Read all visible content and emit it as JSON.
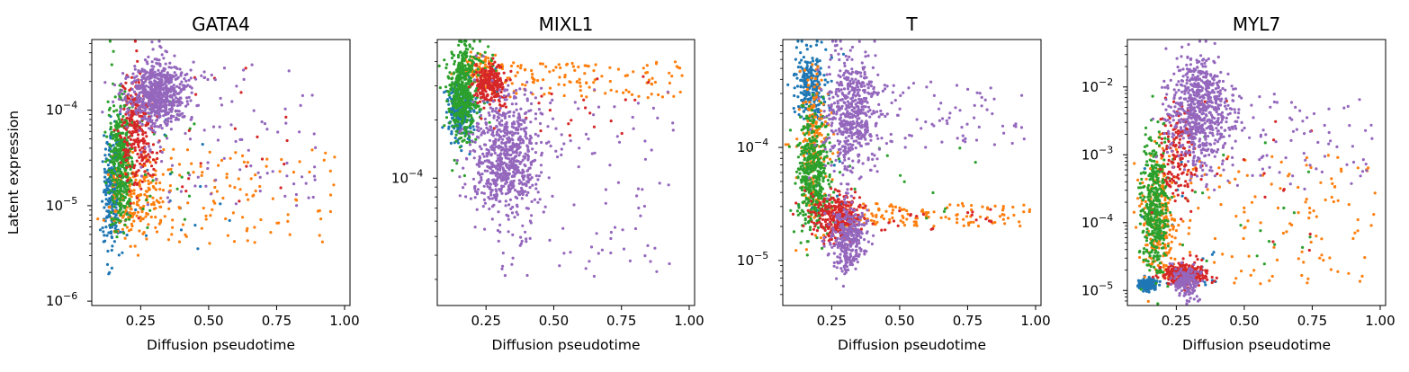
{
  "figure": {
    "ylabel": "Latent expression"
  },
  "colors": {
    "blue": "#1f77b4",
    "orange": "#ff7f0e",
    "green": "#2ca02c",
    "red": "#d62728",
    "purple": "#9467bd"
  },
  "chart_data": [
    {
      "type": "scatter",
      "title": "GATA4",
      "xlabel": "Diffusion pseudotime",
      "ylabel": "Latent expression",
      "xlim": [
        0.07,
        1.02
      ],
      "ylim": [
        9e-07,
        0.00055
      ],
      "yscale": "log",
      "xticks": [
        "0.25",
        "0.50",
        "0.75",
        "1.00"
      ],
      "yticks": [
        {
          "base": "10",
          "exp": "−6",
          "value": 1e-06
        },
        {
          "base": "10",
          "exp": "−5",
          "value": 1e-05
        },
        {
          "base": "10",
          "exp": "−4",
          "value": 0.0001
        }
      ],
      "grid": false,
      "series": [
        {
          "color": "#1f77b4",
          "clusters": [
            {
              "x": [
                0.11,
                0.18
              ],
              "y": [
                3.5e-06,
                6e-05
              ],
              "n": 260
            }
          ],
          "scatter": {
            "x": [
              0.13,
              0.6
            ],
            "y": [
              3e-06,
              0.0001
            ],
            "n": 25
          }
        },
        {
          "color": "#ff7f0e",
          "clusters": [
            {
              "x": [
                0.12,
                0.35
              ],
              "y": [
                5e-06,
                3e-05
              ],
              "n": 160
            }
          ],
          "scatter": {
            "x": [
              0.15,
              0.97
            ],
            "y": [
              4e-06,
              4e-05
            ],
            "n": 150
          }
        },
        {
          "color": "#2ca02c",
          "clusters": [
            {
              "x": [
                0.13,
                0.22
              ],
              "y": [
                6e-06,
                0.00015
              ],
              "n": 380
            }
          ],
          "scatter": {
            "x": [
              0.14,
              0.45
            ],
            "y": [
              5e-06,
              0.00015
            ],
            "n": 40
          }
        },
        {
          "color": "#d62728",
          "clusters": [
            {
              "x": [
                0.17,
                0.3
              ],
              "y": [
                1.5e-05,
                0.00025
              ],
              "n": 260
            }
          ],
          "scatter": {
            "x": [
              0.2,
              0.85
            ],
            "y": [
              1e-05,
              0.0003
            ],
            "n": 25
          }
        },
        {
          "color": "#9467bd",
          "clusters": [
            {
              "x": [
                0.2,
                0.42
              ],
              "y": [
                7e-05,
                0.00032
              ],
              "n": 650
            }
          ],
          "scatter": {
            "x": [
              0.25,
              0.9
            ],
            "y": [
              1e-05,
              0.0003
            ],
            "n": 110
          }
        }
      ]
    },
    {
      "type": "scatter",
      "title": "MIXL1",
      "xlabel": "Diffusion pseudotime",
      "ylabel": "",
      "xlim": [
        0.07,
        1.02
      ],
      "ylim": [
        2.2e-05,
        0.00052
      ],
      "yscale": "log",
      "xticks": [
        "0.25",
        "0.50",
        "0.75",
        "1.00"
      ],
      "yticks": [
        {
          "base": "10",
          "exp": "−4",
          "value": 0.0001
        }
      ],
      "grid": false,
      "series": [
        {
          "color": "#1f77b4",
          "clusters": [
            {
              "x": [
                0.11,
                0.2
              ],
              "y": [
                0.00016,
                0.00032
              ],
              "n": 260
            }
          ],
          "scatter": {
            "x": [
              0.12,
              0.3
            ],
            "y": [
              0.00013,
              0.0004
            ],
            "n": 20
          }
        },
        {
          "color": "#ff7f0e",
          "clusters": [
            {
              "x": [
                0.15,
                0.3
              ],
              "y": [
                0.0003,
                0.00045
              ],
              "n": 80
            }
          ],
          "scatter": {
            "x": [
              0.25,
              0.98
            ],
            "y": [
              0.00026,
              0.0004
            ],
            "n": 130
          }
        },
        {
          "color": "#2ca02c",
          "clusters": [
            {
              "x": [
                0.11,
                0.22
              ],
              "y": [
                0.00016,
                0.00048
              ],
              "n": 460
            }
          ],
          "scatter": {
            "x": [
              0.15,
              0.3
            ],
            "y": [
              0.00035,
              0.00048
            ],
            "n": 30
          }
        },
        {
          "color": "#d62728",
          "clusters": [
            {
              "x": [
                0.2,
                0.33
              ],
              "y": [
                0.00024,
                0.0004
              ],
              "n": 230
            }
          ],
          "scatter": {
            "x": [
              0.25,
              0.85
            ],
            "y": [
              0.00016,
              0.00035
            ],
            "n": 25
          }
        },
        {
          "color": "#9467bd",
          "clusters": [
            {
              "x": [
                0.2,
                0.45
              ],
              "y": [
                6e-05,
                0.00026
              ],
              "n": 700
            }
          ],
          "scatter": {
            "x": [
              0.3,
              0.95
            ],
            "y": [
              3e-05,
              0.0003
            ],
            "n": 120
          }
        }
      ]
    },
    {
      "type": "scatter",
      "title": "T",
      "xlabel": "Diffusion pseudotime",
      "ylabel": "",
      "xlim": [
        0.07,
        1.02
      ],
      "ylim": [
        4e-06,
        0.0009
      ],
      "yscale": "log",
      "xticks": [
        "0.25",
        "0.50",
        "0.75",
        "1.00"
      ],
      "yticks": [
        {
          "base": "10",
          "exp": "−5",
          "value": 1e-05
        },
        {
          "base": "10",
          "exp": "−4",
          "value": 0.0001
        }
      ],
      "grid": false,
      "series": [
        {
          "color": "#1f77b4",
          "clusters": [
            {
              "x": [
                0.12,
                0.23
              ],
              "y": [
                0.00015,
                0.0007
              ],
              "n": 260
            }
          ],
          "scatter": {
            "x": [
              0.12,
              0.3
            ],
            "y": [
              2e-05,
              0.0007
            ],
            "n": 30
          }
        },
        {
          "color": "#ff7f0e",
          "clusters": [
            {
              "x": [
                0.12,
                0.25
              ],
              "y": [
                2e-05,
                0.0005
              ],
              "n": 200
            }
          ],
          "scatter": {
            "x": [
              0.3,
              0.98
            ],
            "y": [
              2e-05,
              3.2e-05
            ],
            "n": 120
          }
        },
        {
          "color": "#2ca02c",
          "clusters": [
            {
              "x": [
                0.12,
                0.24
              ],
              "y": [
                2e-05,
                0.00018
              ],
              "n": 400
            }
          ],
          "scatter": {
            "x": [
              0.14,
              0.8
            ],
            "y": [
              2e-05,
              0.0001
            ],
            "n": 25
          }
        },
        {
          "color": "#d62728",
          "clusters": [
            {
              "x": [
                0.18,
                0.35
              ],
              "y": [
                1.5e-05,
                4e-05
              ],
              "n": 300
            }
          ],
          "scatter": {
            "x": [
              0.3,
              0.85
            ],
            "y": [
              1.8e-05,
              3e-05
            ],
            "n": 25
          }
        },
        {
          "color": "#9467bd",
          "clusters": [
            {
              "x": [
                0.23,
                0.42
              ],
              "y": [
                6e-05,
                0.0007
              ],
              "n": 500
            },
            {
              "x": [
                0.24,
                0.38
              ],
              "y": [
                8e-06,
                3.2e-05
              ],
              "n": 320
            }
          ],
          "scatter": {
            "x": [
              0.35,
              0.96
            ],
            "y": [
              0.0001,
              0.0004
            ],
            "n": 90
          }
        }
      ]
    },
    {
      "type": "scatter",
      "title": "MYL7",
      "xlabel": "Diffusion pseudotime",
      "ylabel": "",
      "xlim": [
        0.07,
        1.02
      ],
      "ylim": [
        6e-06,
        0.05
      ],
      "yscale": "log",
      "xticks": [
        "0.25",
        "0.50",
        "0.75",
        "1.00"
      ],
      "yticks": [
        {
          "base": "10",
          "exp": "−5",
          "value": 1e-05
        },
        {
          "base": "10",
          "exp": "−4",
          "value": 0.0001
        },
        {
          "base": "10",
          "exp": "−3",
          "value": 0.001
        },
        {
          "base": "10",
          "exp": "−2",
          "value": 0.01
        }
      ],
      "grid": false,
      "series": [
        {
          "color": "#1f77b4",
          "clusters": [
            {
              "x": [
                0.11,
                0.18
              ],
              "y": [
                1e-05,
                1.5e-05
              ],
              "n": 180
            }
          ],
          "scatter": {
            "x": [
              0.12,
              0.4
            ],
            "y": [
              1e-05,
              0.001
            ],
            "n": 30
          }
        },
        {
          "color": "#ff7f0e",
          "clusters": [
            {
              "x": [
                0.12,
                0.25
              ],
              "y": [
                1.2e-05,
                0.001
              ],
              "n": 220
            }
          ],
          "scatter": {
            "x": [
              0.2,
              0.99
            ],
            "y": [
              1.2e-05,
              0.001
            ],
            "n": 140
          }
        },
        {
          "color": "#2ca02c",
          "clusters": [
            {
              "x": [
                0.12,
                0.22
              ],
              "y": [
                1.5e-05,
                0.002
              ],
              "n": 420
            }
          ],
          "scatter": {
            "x": [
              0.14,
              0.75
            ],
            "y": [
              1.5e-05,
              0.002
            ],
            "n": 20
          }
        },
        {
          "color": "#d62728",
          "clusters": [
            {
              "x": [
                0.2,
                0.36
              ],
              "y": [
                1.2e-05,
                2.5e-05
              ],
              "n": 300
            },
            {
              "x": [
                0.2,
                0.32
              ],
              "y": [
                0.0002,
                0.005
              ],
              "n": 150
            }
          ],
          "scatter": {
            "x": [
              0.25,
              0.8
            ],
            "y": [
              2e-05,
              0.007
            ],
            "n": 25
          }
        },
        {
          "color": "#9467bd",
          "clusters": [
            {
              "x": [
                0.22,
                0.45
              ],
              "y": [
                0.0007,
                0.032
              ],
              "n": 650
            },
            {
              "x": [
                0.24,
                0.33
              ],
              "y": [
                8e-06,
                2.2e-05
              ],
              "n": 180
            }
          ],
          "scatter": {
            "x": [
              0.3,
              0.98
            ],
            "y": [
              0.0003,
              0.008
            ],
            "n": 110
          }
        }
      ]
    }
  ]
}
